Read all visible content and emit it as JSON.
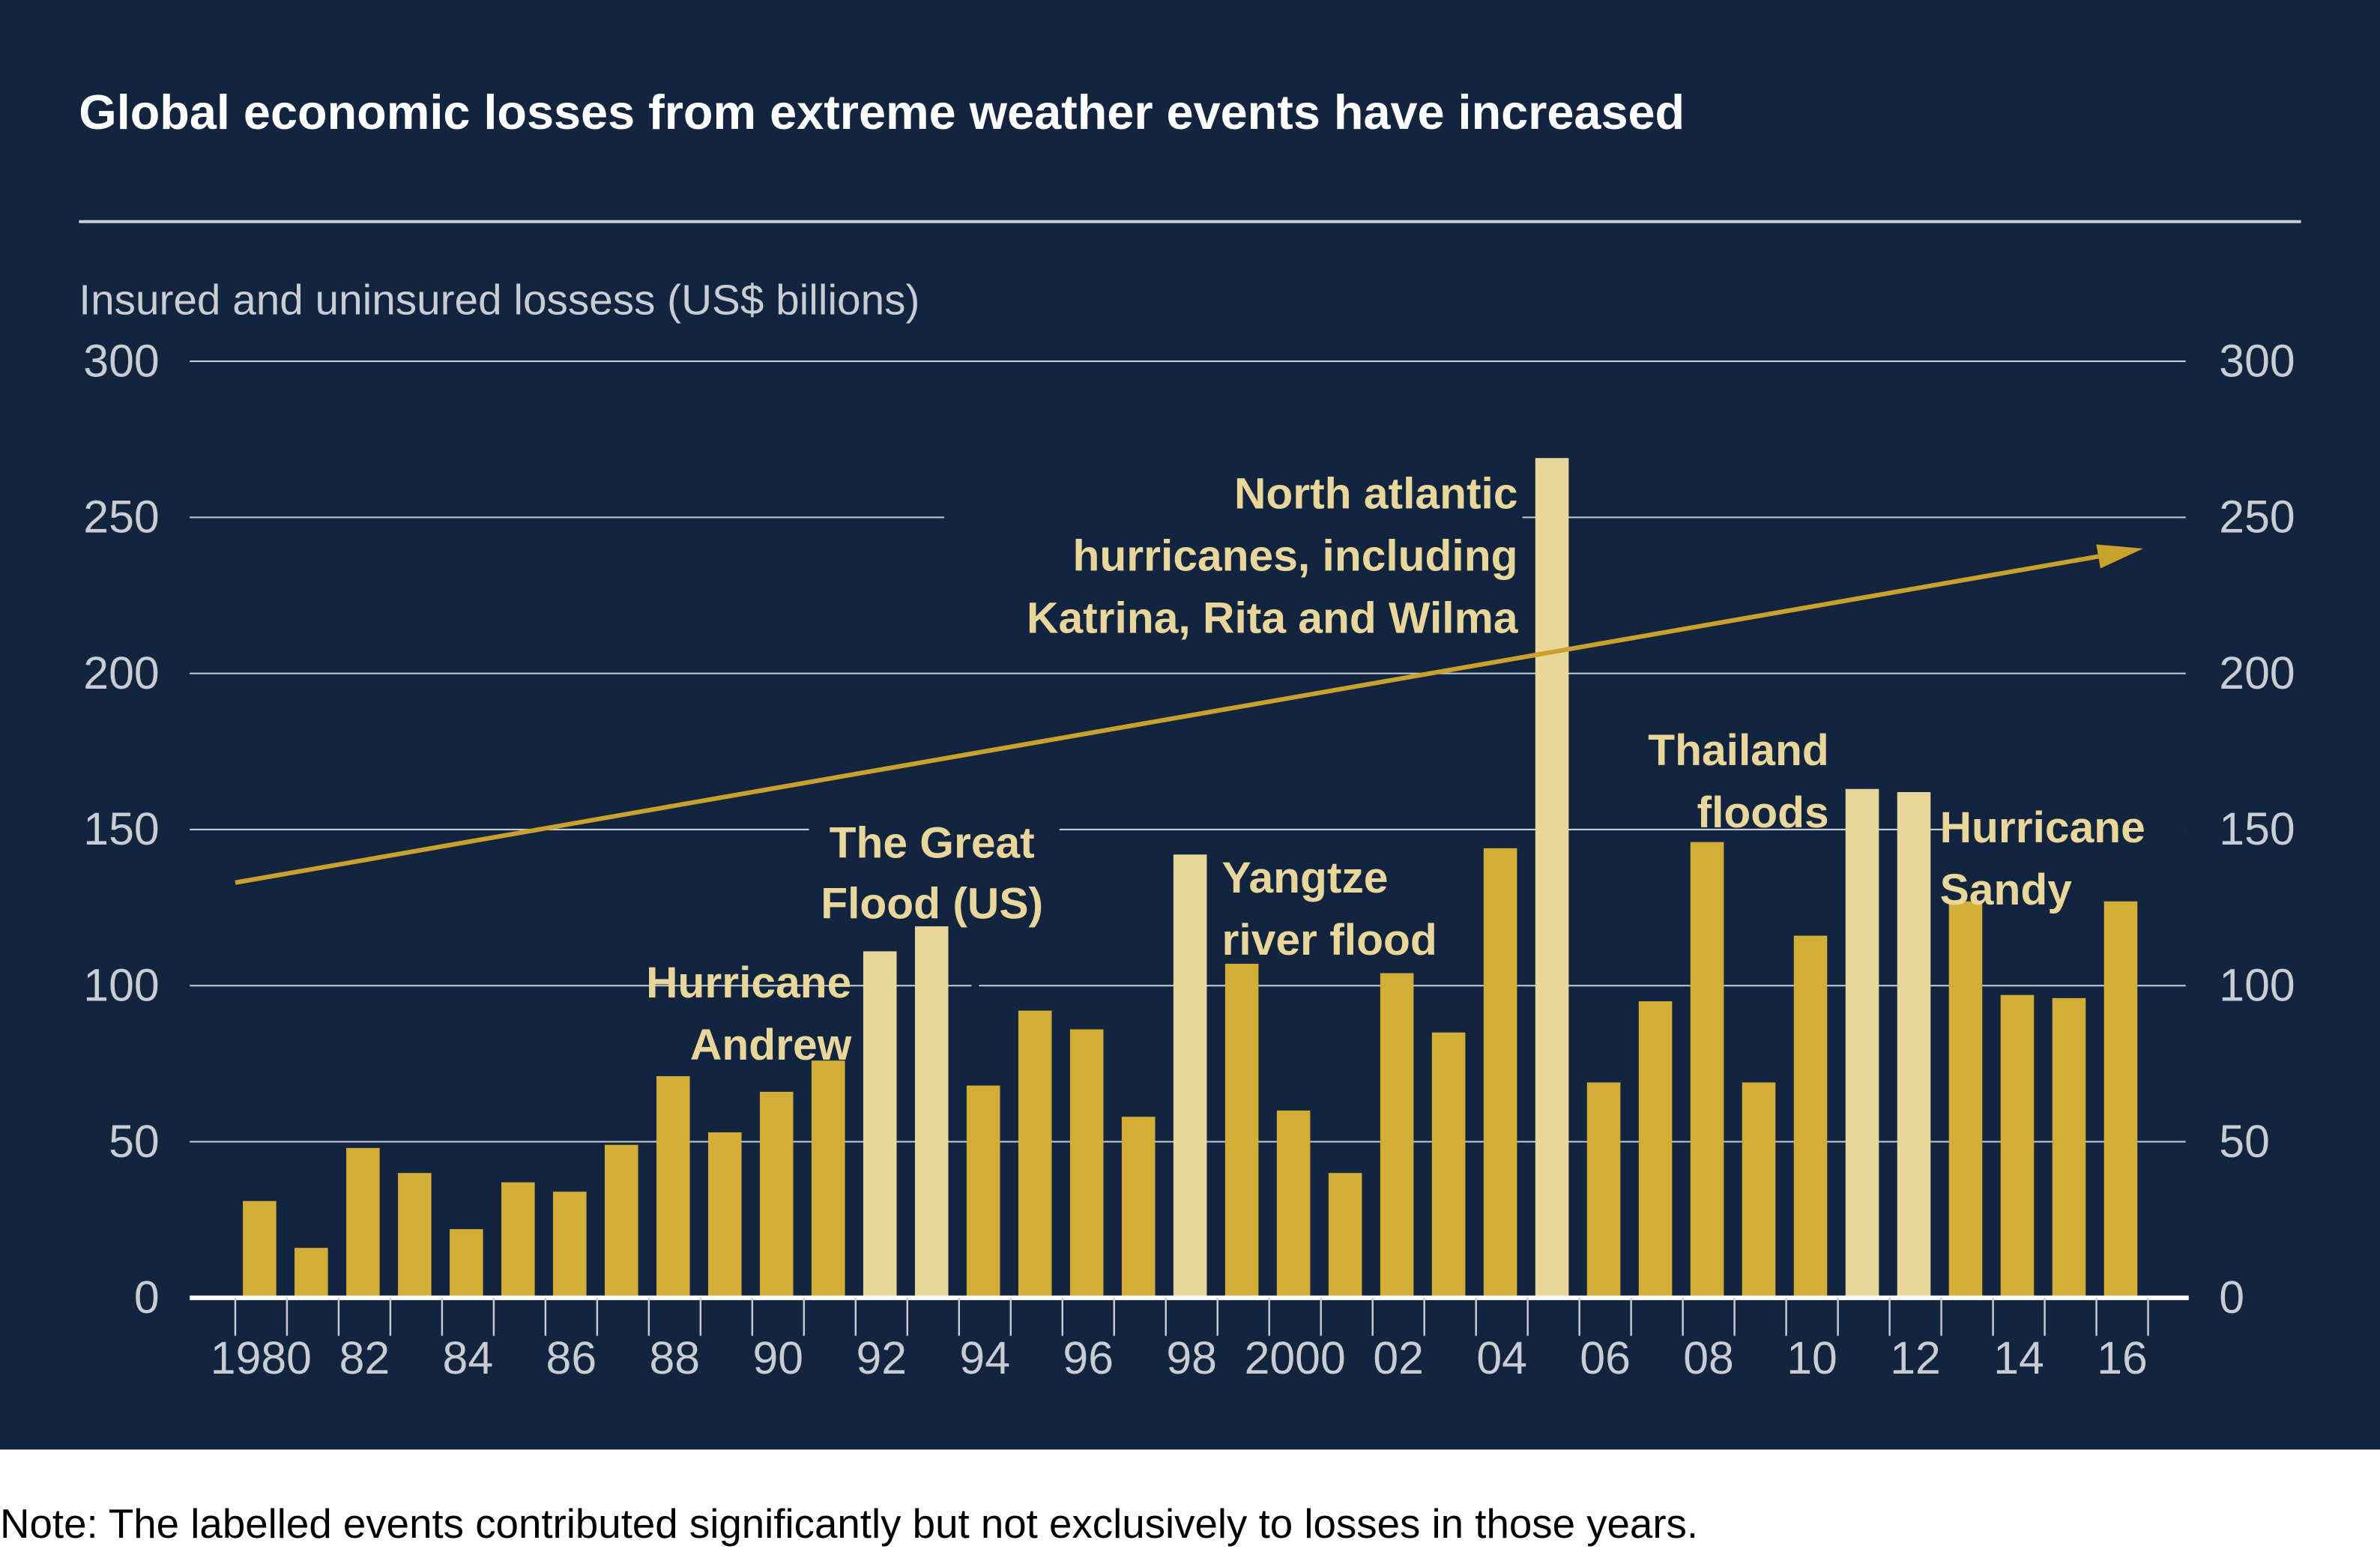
{
  "chart_data": {
    "type": "bar",
    "title": "Global economic losses from extreme weather events have increased",
    "ylabel": "Insured and uninsured lossess (US$ billions)",
    "xlabel": "",
    "ylim": [
      0,
      300
    ],
    "yticks": [
      "0",
      "50",
      "100",
      "150",
      "200",
      "250",
      "300"
    ],
    "grid": true,
    "categories": [
      1980,
      1981,
      1982,
      1983,
      1984,
      1985,
      1986,
      1987,
      1988,
      1989,
      1990,
      1991,
      1992,
      1993,
      1994,
      1995,
      1996,
      1997,
      1998,
      1999,
      2000,
      2001,
      2002,
      2003,
      2004,
      2005,
      2006,
      2007,
      2008,
      2009,
      2010,
      2011,
      2012,
      2013,
      2014,
      2015,
      2016
    ],
    "xtick_labels": {
      "1980": "1980",
      "1982": "82",
      "1984": "84",
      "1986": "86",
      "1988": "88",
      "1990": "90",
      "1992": "92",
      "1994": "94",
      "1996": "96",
      "1998": "98",
      "2000": "2000",
      "2002": "02",
      "2004": "04",
      "2006": "06",
      "2008": "08",
      "2010": "10",
      "2012": "12",
      "2014": "14",
      "2016": "16"
    },
    "values": [
      31,
      16,
      48,
      40,
      22,
      37,
      34,
      49,
      71,
      53,
      66,
      76,
      111,
      119,
      68,
      92,
      86,
      58,
      142,
      107,
      60,
      40,
      104,
      85,
      144,
      269,
      69,
      95,
      146,
      69,
      116,
      163,
      162,
      127,
      97,
      96,
      127
    ],
    "highlighted_years": [
      1992,
      1993,
      1998,
      2005,
      2011,
      2012
    ],
    "colors": {
      "bar": "#d3ae37",
      "highlight": "#e9d69b",
      "background": "#13243f",
      "trend": "#c9a22e",
      "grid": "#c9ccd3"
    },
    "trend": {
      "x": [
        1980,
        2016
      ],
      "y": [
        133,
        240
      ],
      "arrow": true
    },
    "annotations": [
      {
        "lines": [
          "Hurricane",
          "Andrew"
        ],
        "year": 1992
      },
      {
        "lines": [
          "The Great",
          "Flood (US)"
        ],
        "year": 1993
      },
      {
        "lines": [
          "Yangtze",
          "river flood"
        ],
        "year": 1998
      },
      {
        "lines": [
          "North atlantic",
          "hurricanes, including",
          "Katrina, Rita and Wilma"
        ],
        "year": 2005
      },
      {
        "lines": [
          "Thailand",
          "floods"
        ],
        "year": 2011
      },
      {
        "lines": [
          "Hurricane",
          "Sandy"
        ],
        "year": 2012
      }
    ]
  },
  "note": "Note: The labelled events contributed significantly but not exclusively to losses in those years."
}
